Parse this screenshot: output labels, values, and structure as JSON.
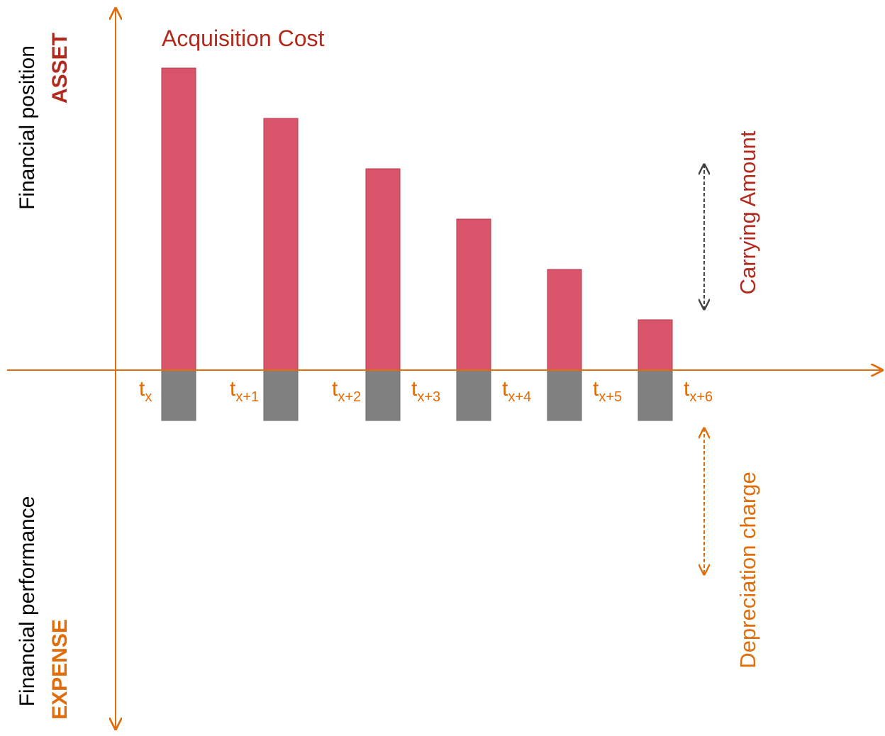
{
  "labels": {
    "acquisition_cost": "Acquisition Cost",
    "carrying_amount": "Carrying Amount",
    "depreciation_charge": "Depreciation charge",
    "upper_axis_line1": "Financial position",
    "upper_axis_line2": "ASSET",
    "lower_axis_line1": "Financial performance",
    "lower_axis_line2": "EXPENSE"
  },
  "periods": [
    {
      "base": "t",
      "sub": "x"
    },
    {
      "base": "t",
      "sub": "x+1"
    },
    {
      "base": "t",
      "sub": "x+2"
    },
    {
      "base": "t",
      "sub": "x+3"
    },
    {
      "base": "t",
      "sub": "x+4"
    },
    {
      "base": "t",
      "sub": "x+5"
    },
    {
      "base": "t",
      "sub": "x+6"
    }
  ],
  "chart_data": {
    "type": "bar",
    "carrying_amounts": [
      6,
      5,
      4,
      3,
      2,
      1
    ],
    "depreciation_charges": [
      1,
      1,
      1,
      1,
      1,
      1
    ]
  },
  "colors": {
    "axis": "#e06c0a",
    "asset_bar": "#d9536a",
    "expense_bar": "#808080",
    "acquisition_text": "#b22a1e",
    "carrying_text": "#b22a1e",
    "depreciation_text": "#e06c0a",
    "carrying_arrow": "#404040",
    "depreciation_arrow": "#e06c0a"
  }
}
